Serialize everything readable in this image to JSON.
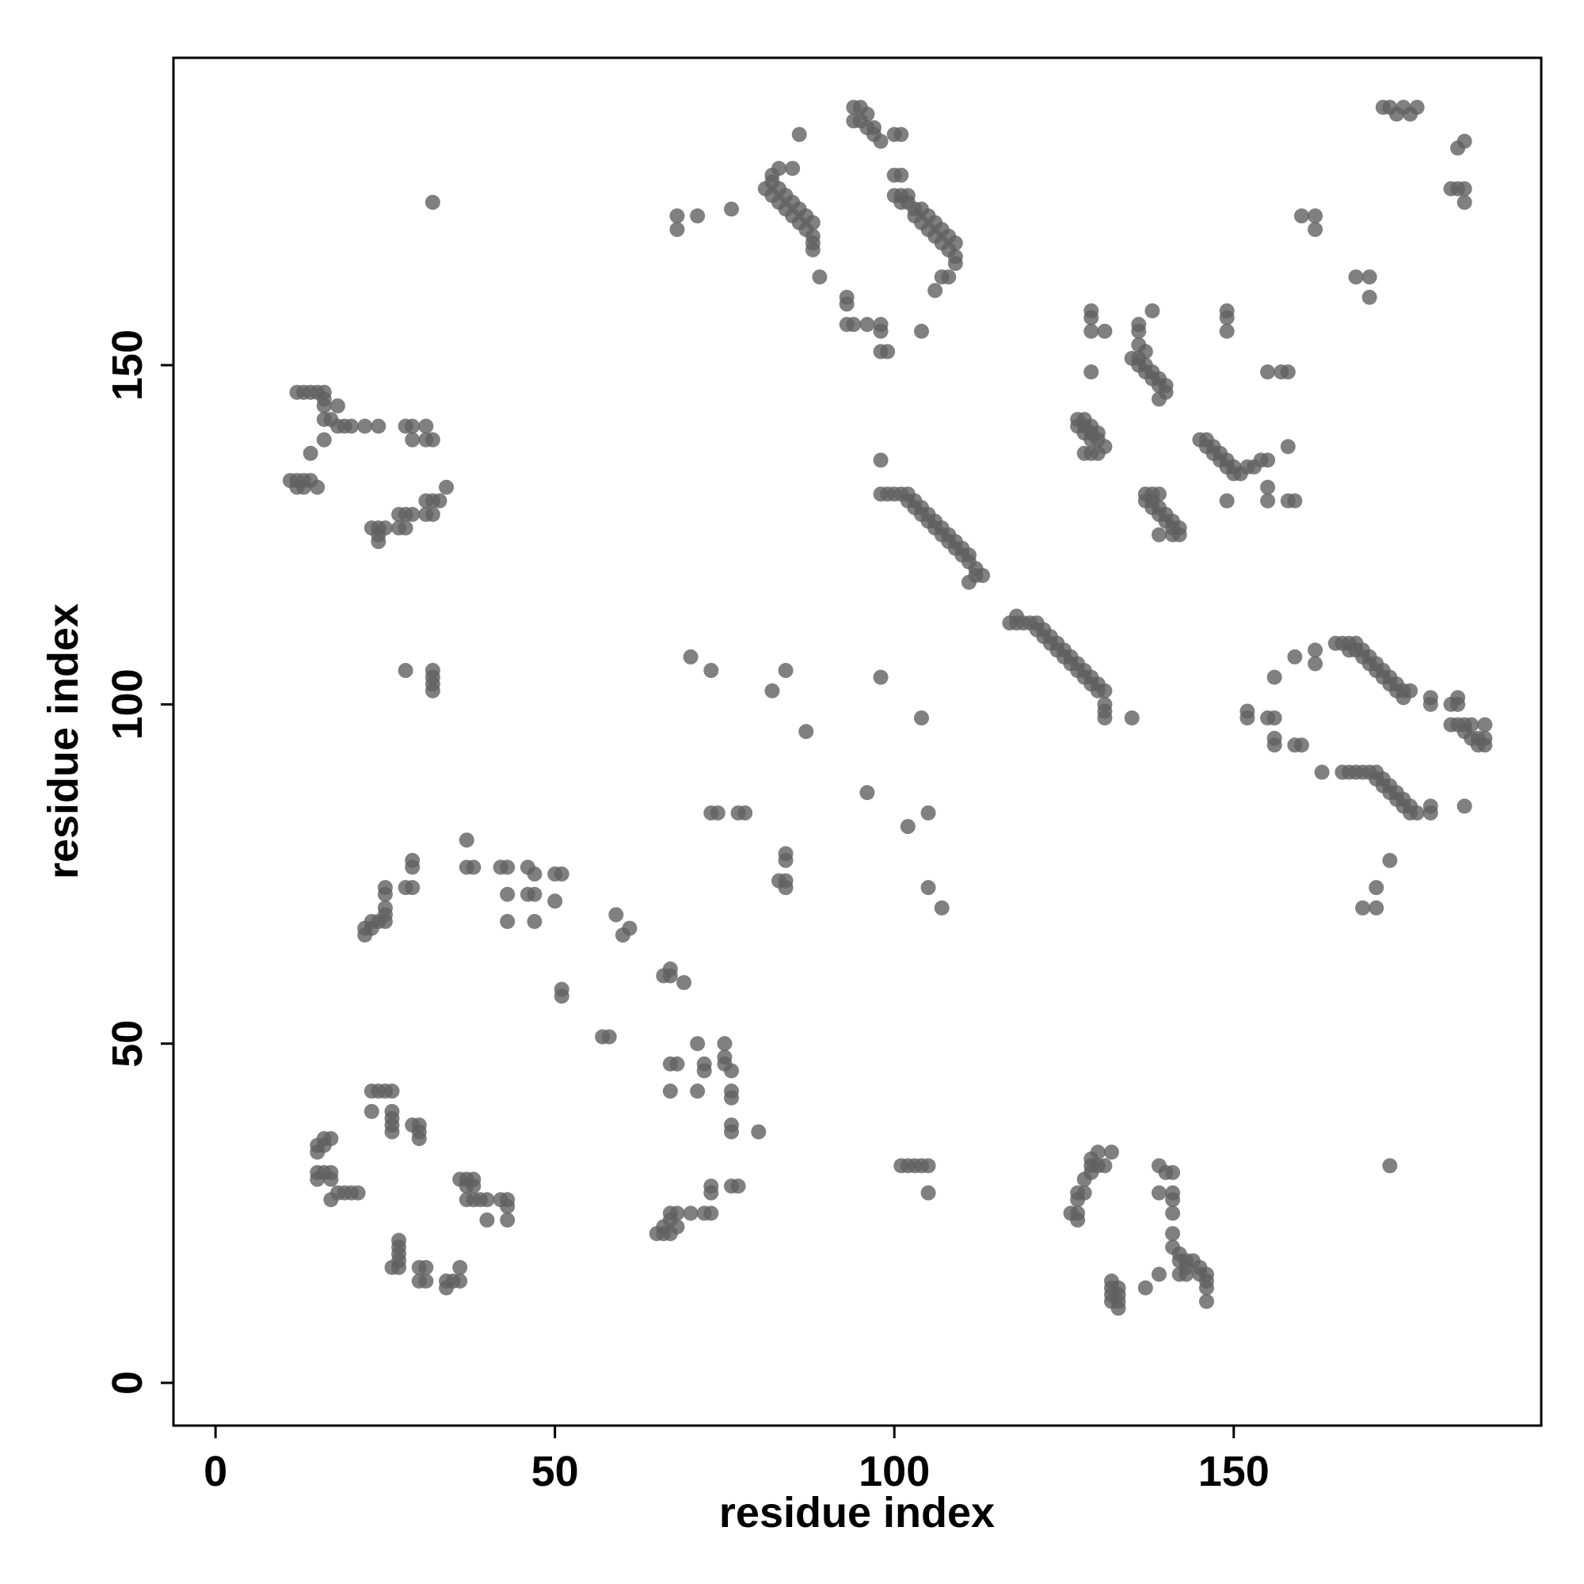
{
  "chart_data": {
    "type": "scatter",
    "xlabel": "residue index",
    "ylabel": "residue index",
    "xlim": [
      -6.2,
      195.3
    ],
    "ylim": [
      -6.3,
      195.3
    ],
    "xticks": [
      0,
      50,
      100,
      150
    ],
    "yticks": [
      0,
      50,
      100,
      150
    ],
    "color": "#606060",
    "opacity": 0.8,
    "x": [
      81,
      82,
      82,
      83,
      83,
      84,
      84,
      85,
      85,
      86,
      86,
      87,
      87,
      88,
      88,
      88,
      88,
      82,
      83,
      85,
      86,
      89,
      76,
      71,
      68,
      68,
      94,
      95,
      95,
      96,
      96,
      97,
      97,
      98,
      94,
      100,
      101,
      100,
      101,
      100,
      101,
      102,
      101,
      102,
      103,
      103,
      104,
      104,
      105,
      105,
      106,
      106,
      107,
      107,
      108,
      108,
      109,
      109,
      109,
      108,
      107,
      106,
      104,
      93,
      93,
      93,
      94,
      96,
      98,
      98,
      98,
      99,
      12,
      13,
      14,
      15,
      16,
      16,
      16,
      18,
      17,
      16,
      18,
      19,
      20,
      22,
      24,
      28,
      29,
      31,
      29,
      31,
      32,
      16,
      14,
      11,
      12,
      13,
      14,
      15,
      12,
      13,
      23,
      24,
      25,
      24,
      24,
      27,
      28,
      29,
      27,
      28,
      31,
      32,
      31,
      32,
      33,
      34,
      28,
      32,
      32,
      32,
      32,
      32,
      98,
      99,
      100,
      101,
      102,
      102,
      103,
      103,
      104,
      104,
      105,
      105,
      106,
      106,
      107,
      107,
      108,
      108,
      109,
      109,
      110,
      110,
      111,
      111,
      112,
      112,
      111,
      113,
      98,
      117,
      118,
      119,
      118,
      120,
      121,
      121,
      122,
      122,
      123,
      123,
      124,
      124,
      125,
      125,
      126,
      126,
      127,
      127,
      128,
      128,
      129,
      129,
      130,
      130,
      131,
      131,
      131,
      131,
      135,
      129,
      129,
      129,
      131,
      129,
      135,
      136,
      136,
      137,
      137,
      138,
      138,
      139,
      139,
      140,
      140,
      139,
      136,
      136,
      136,
      137,
      138,
      127,
      128,
      127,
      128,
      129,
      128,
      129,
      130,
      129,
      130,
      131,
      130,
      129,
      128,
      137,
      137,
      138,
      138,
      139,
      139,
      140,
      140,
      141,
      141,
      142,
      142,
      141,
      139,
      138,
      139,
      145,
      146,
      146,
      147,
      147,
      148,
      148,
      149,
      149,
      150,
      150,
      151,
      152,
      153,
      154,
      155,
      155,
      155,
      158,
      159,
      158,
      149,
      149,
      149,
      149,
      155,
      157,
      158,
      160,
      162,
      162,
      168,
      170,
      170,
      172,
      173,
      174,
      175,
      176,
      177,
      183,
      184,
      182,
      183,
      184,
      184,
      159,
      162,
      162,
      165,
      166,
      167,
      168,
      167,
      168,
      169,
      169,
      170,
      170,
      171,
      171,
      172,
      172,
      173,
      173,
      174,
      174,
      175,
      175,
      176,
      179,
      179,
      183,
      183,
      182,
      182,
      183,
      184,
      185,
      184,
      185,
      186,
      186,
      187,
      187,
      187,
      156,
      152,
      152,
      155,
      156,
      156,
      156,
      159,
      160,
      163,
      166,
      167,
      168,
      169,
      170,
      171,
      171,
      172,
      172,
      173,
      173,
      174,
      174,
      175,
      175,
      176,
      176,
      177,
      179,
      179,
      184,
      173,
      171,
      171,
      169,
      173,
      70,
      73,
      82,
      84,
      87,
      98,
      104,
      96,
      102,
      105,
      105,
      107,
      73,
      74,
      77,
      78,
      84,
      84,
      83,
      84,
      84,
      22,
      22,
      23,
      23,
      24,
      25,
      25,
      25,
      25,
      25,
      28,
      29,
      29,
      29,
      37,
      37,
      38,
      42,
      43,
      43,
      43,
      46,
      47,
      46,
      47,
      47,
      50,
      51,
      50,
      51,
      51,
      57,
      58,
      59,
      60,
      61,
      66,
      67,
      67,
      69,
      67,
      68,
      67,
      71,
      72,
      72,
      71,
      75,
      75,
      75,
      76,
      76,
      76,
      76,
      76,
      80,
      73,
      73,
      76,
      77,
      72,
      73,
      70,
      68,
      67,
      67,
      66,
      66,
      65,
      67,
      68,
      15,
      16,
      15,
      16,
      17,
      15,
      16,
      17,
      15,
      17,
      17,
      18,
      19,
      20,
      21,
      23,
      24,
      25,
      26,
      23,
      26,
      26,
      26,
      26,
      29,
      30,
      30,
      30,
      36,
      37,
      38,
      37,
      38,
      37,
      38,
      39,
      40,
      42,
      43,
      43,
      40,
      43,
      27,
      27,
      27,
      27,
      26,
      27,
      30,
      31,
      30,
      31,
      34,
      34,
      35,
      36,
      36,
      101,
      102,
      103,
      104,
      105,
      105,
      126,
      127,
      127,
      127,
      127,
      128,
      128,
      129,
      129,
      130,
      131,
      130,
      132,
      129,
      132,
      132,
      132,
      132,
      133,
      133,
      133,
      133,
      137,
      139,
      139,
      139,
      140,
      141,
      141,
      141,
      141,
      141,
      141,
      142,
      142,
      143,
      142,
      143,
      144,
      145,
      145,
      146,
      146,
      146,
      146,
      143
    ],
    "values": [
      176,
      175,
      177,
      174,
      176,
      173,
      175,
      172,
      174,
      171,
      173,
      170,
      172,
      169,
      171,
      168,
      167,
      178,
      179,
      179,
      184,
      163,
      173,
      172,
      172,
      170,
      188,
      188,
      186,
      187,
      185,
      185,
      184,
      183,
      186,
      184,
      184,
      178,
      178,
      175,
      175,
      175,
      174,
      174,
      173,
      172,
      173,
      171,
      172,
      170,
      171,
      169,
      170,
      168,
      169,
      167,
      168,
      166,
      165,
      163,
      163,
      161,
      155,
      160,
      159,
      156,
      156,
      156,
      156,
      155,
      152,
      152,
      146,
      146,
      146,
      146,
      146,
      145,
      144,
      144,
      142,
      142,
      141,
      141,
      141,
      141,
      141,
      141,
      141,
      141,
      139,
      139,
      139,
      139,
      137,
      133,
      133,
      133,
      133,
      132,
      132,
      132,
      126,
      126,
      126,
      125,
      124,
      128,
      128,
      128,
      126,
      126,
      128,
      128,
      130,
      130,
      130,
      132,
      105,
      105,
      104,
      103,
      102,
      174,
      131,
      131,
      131,
      131,
      131,
      130,
      130,
      129,
      129,
      128,
      128,
      127,
      127,
      126,
      126,
      125,
      125,
      124,
      124,
      123,
      123,
      122,
      122,
      121,
      120,
      119,
      118,
      119,
      136,
      112,
      112,
      112,
      113,
      112,
      112,
      111,
      111,
      110,
      110,
      109,
      109,
      108,
      108,
      107,
      107,
      106,
      106,
      105,
      105,
      104,
      104,
      103,
      103,
      102,
      102,
      100,
      99,
      98,
      98,
      157,
      158,
      155,
      155,
      149,
      151,
      151,
      150,
      150,
      149,
      149,
      148,
      148,
      147,
      147,
      146,
      145,
      153,
      155,
      156,
      152,
      158,
      142,
      142,
      141,
      141,
      141,
      140,
      140,
      140,
      139,
      139,
      138,
      137,
      137,
      137,
      130,
      131,
      130,
      129,
      129,
      128,
      128,
      127,
      127,
      126,
      126,
      125,
      125,
      125,
      131,
      131,
      139,
      139,
      138,
      138,
      137,
      137,
      136,
      136,
      135,
      135,
      134,
      134,
      135,
      135,
      136,
      136,
      132,
      130,
      130,
      130,
      138,
      130,
      158,
      157,
      155,
      149,
      149,
      149,
      172,
      172,
      170,
      163,
      163,
      160,
      188,
      188,
      187,
      188,
      187,
      188,
      182,
      183,
      176,
      176,
      176,
      174,
      107,
      108,
      106,
      109,
      109,
      109,
      109,
      108,
      108,
      108,
      107,
      107,
      106,
      106,
      105,
      105,
      104,
      104,
      103,
      103,
      102,
      102,
      101,
      102,
      101,
      100,
      101,
      100,
      100,
      97,
      97,
      97,
      97,
      96,
      95,
      95,
      94,
      95,
      94,
      97,
      104,
      99,
      98,
      98,
      98,
      95,
      94,
      94,
      94,
      90,
      90,
      90,
      90,
      90,
      90,
      90,
      89,
      89,
      88,
      88,
      87,
      87,
      86,
      86,
      85,
      85,
      84,
      84,
      85,
      84,
      85,
      77,
      73,
      70,
      70,
      32,
      107,
      105,
      102,
      105,
      96,
      104,
      98,
      87,
      82,
      84,
      73,
      70,
      84,
      84,
      84,
      84,
      78,
      77,
      74,
      74,
      73,
      66,
      67,
      67,
      68,
      68,
      68,
      69,
      70,
      72,
      73,
      73,
      73,
      76,
      77,
      80,
      76,
      76,
      76,
      76,
      72,
      68,
      76,
      75,
      72,
      72,
      68,
      75,
      75,
      71,
      58,
      57,
      51,
      51,
      69,
      66,
      67,
      60,
      61,
      60,
      59,
      47,
      47,
      43,
      50,
      47,
      46,
      43,
      50,
      48,
      47,
      46,
      43,
      42,
      38,
      37,
      37,
      29,
      28,
      29,
      29,
      25,
      25,
      25,
      25,
      25,
      24,
      23,
      22,
      22,
      22,
      23,
      35,
      35,
      34,
      36,
      36,
      31,
      31,
      31,
      30,
      30,
      27,
      28,
      28,
      28,
      28,
      43,
      43,
      43,
      43,
      40,
      40,
      39,
      38,
      37,
      38,
      38,
      37,
      36,
      30,
      30,
      30,
      29,
      29,
      27,
      27,
      27,
      27,
      27,
      27,
      26,
      24,
      24,
      21,
      20,
      19,
      18,
      17,
      17,
      17,
      17,
      15,
      15,
      15,
      14,
      15,
      15,
      17,
      32,
      32,
      32,
      32,
      32,
      28,
      25,
      25,
      24,
      27,
      28,
      28,
      30,
      31,
      32,
      32,
      32,
      34,
      34,
      33,
      15,
      14,
      13,
      12,
      14,
      13,
      12,
      11,
      14,
      16,
      28,
      32,
      31,
      31,
      28,
      27,
      25,
      22,
      20,
      19,
      18,
      18,
      16,
      16,
      18,
      17,
      16,
      16,
      15,
      14,
      12,
      17
    ]
  }
}
